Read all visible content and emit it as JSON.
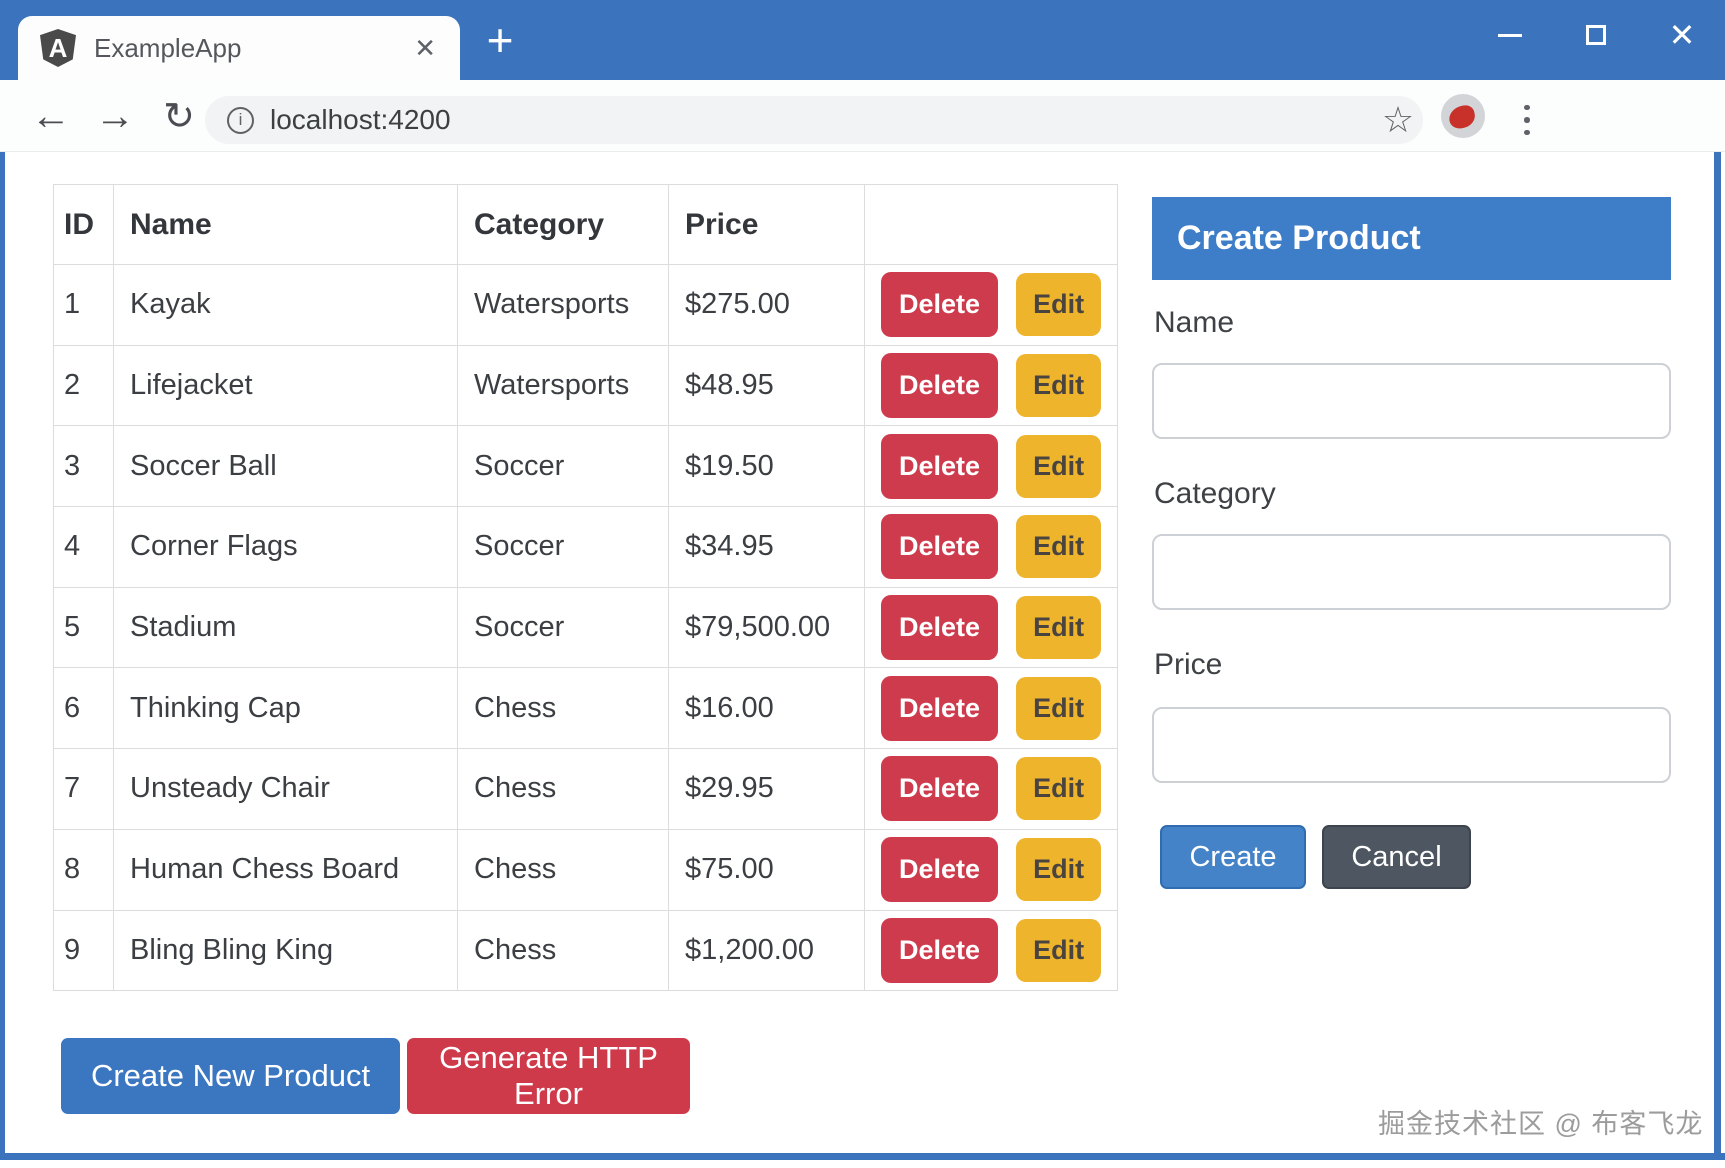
{
  "colors": {
    "frame_blue": "#3B74BD",
    "panel_header_blue": "#3E7DC7",
    "danger_red": "#CE3B4D",
    "warning_amber": "#EDB42C",
    "primary_blue": "#4583C8",
    "secondary_dark": "#4D5661"
  },
  "browser": {
    "tab": {
      "favicon_letter": "A",
      "title": "ExampleApp",
      "close_glyph": "✕"
    },
    "new_tab_glyph": "+",
    "window_controls": {
      "close_glyph": "✕"
    },
    "nav": {
      "back_glyph": "←",
      "forward_glyph": "→",
      "reload_glyph": "↻",
      "info_glyph": "i",
      "url": "localhost:4200",
      "star_glyph": "☆"
    }
  },
  "table": {
    "headers": {
      "id": "ID",
      "name": "Name",
      "category": "Category",
      "price": "Price",
      "actions": ""
    },
    "action_labels": {
      "delete": "Delete",
      "edit": "Edit"
    },
    "rows": [
      {
        "id": "1",
        "name": "Kayak",
        "category": "Watersports",
        "price": "$275.00"
      },
      {
        "id": "2",
        "name": "Lifejacket",
        "category": "Watersports",
        "price": "$48.95"
      },
      {
        "id": "3",
        "name": "Soccer Ball",
        "category": "Soccer",
        "price": "$19.50"
      },
      {
        "id": "4",
        "name": "Corner Flags",
        "category": "Soccer",
        "price": "$34.95"
      },
      {
        "id": "5",
        "name": "Stadium",
        "category": "Soccer",
        "price": "$79,500.00"
      },
      {
        "id": "6",
        "name": "Thinking Cap",
        "category": "Chess",
        "price": "$16.00"
      },
      {
        "id": "7",
        "name": "Unsteady Chair",
        "category": "Chess",
        "price": "$29.95"
      },
      {
        "id": "8",
        "name": "Human Chess Board",
        "category": "Chess",
        "price": "$75.00"
      },
      {
        "id": "9",
        "name": "Bling Bling King",
        "category": "Chess",
        "price": "$1,200.00"
      }
    ]
  },
  "create_panel": {
    "title": "Create Product",
    "fields": {
      "name": {
        "label": "Name",
        "value": ""
      },
      "category": {
        "label": "Category",
        "value": ""
      },
      "price": {
        "label": "Price",
        "value": ""
      }
    },
    "create_label": "Create",
    "cancel_label": "Cancel"
  },
  "footer_actions": {
    "create_new_product": "Create New Product",
    "generate_http_error": "Generate HTTP Error"
  },
  "watermark": "掘金技术社区 @ 布客飞龙"
}
